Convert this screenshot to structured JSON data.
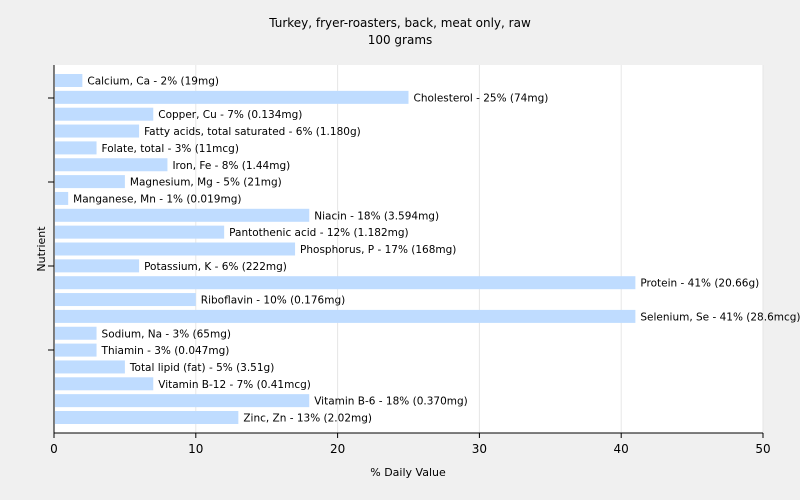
{
  "chart_data": {
    "type": "bar",
    "orientation": "horizontal",
    "title": "Turkey, fryer-roasters, back, meat only, raw",
    "subtitle": "100 grams",
    "xlabel": "% Daily Value",
    "ylabel": "Nutrient",
    "xlim": [
      0,
      50
    ],
    "xticks": [
      0,
      10,
      20,
      30,
      40,
      50
    ],
    "grid": true,
    "bar_color": "#bfdcff",
    "background": "#ffffff",
    "bars": [
      {
        "category": "Calcium, Ca",
        "value": 2,
        "label": "Calcium, Ca - 2% (19mg)"
      },
      {
        "category": "Cholesterol",
        "value": 25,
        "label": "Cholesterol - 25% (74mg)"
      },
      {
        "category": "Copper, Cu",
        "value": 7,
        "label": "Copper, Cu - 7% (0.134mg)"
      },
      {
        "category": "Fatty acids, total saturated",
        "value": 6,
        "label": "Fatty acids, total saturated - 6% (1.180g)"
      },
      {
        "category": "Folate, total",
        "value": 3,
        "label": "Folate, total - 3% (11mcg)"
      },
      {
        "category": "Iron, Fe",
        "value": 8,
        "label": "Iron, Fe - 8% (1.44mg)"
      },
      {
        "category": "Magnesium, Mg",
        "value": 5,
        "label": "Magnesium, Mg - 5% (21mg)"
      },
      {
        "category": "Manganese, Mn",
        "value": 1,
        "label": "Manganese, Mn - 1% (0.019mg)"
      },
      {
        "category": "Niacin",
        "value": 18,
        "label": "Niacin - 18% (3.594mg)"
      },
      {
        "category": "Pantothenic acid",
        "value": 12,
        "label": "Pantothenic acid - 12% (1.182mg)"
      },
      {
        "category": "Phosphorus, P",
        "value": 17,
        "label": "Phosphorus, P - 17% (168mg)"
      },
      {
        "category": "Potassium, K",
        "value": 6,
        "label": "Potassium, K - 6% (222mg)"
      },
      {
        "category": "Protein",
        "value": 41,
        "label": "Protein - 41% (20.66g)"
      },
      {
        "category": "Riboflavin",
        "value": 10,
        "label": "Riboflavin - 10% (0.176mg)"
      },
      {
        "category": "Selenium, Se",
        "value": 41,
        "label": "Selenium, Se - 41% (28.6mcg)"
      },
      {
        "category": "Sodium, Na",
        "value": 3,
        "label": "Sodium, Na - 3% (65mg)"
      },
      {
        "category": "Thiamin",
        "value": 3,
        "label": "Thiamin - 3% (0.047mg)"
      },
      {
        "category": "Total lipid (fat)",
        "value": 5,
        "label": "Total lipid (fat) - 5% (3.51g)"
      },
      {
        "category": "Vitamin B-12",
        "value": 7,
        "label": "Vitamin B-12 - 7% (0.41mcg)"
      },
      {
        "category": "Vitamin B-6",
        "value": 18,
        "label": "Vitamin B-6 - 18% (0.370mg)"
      },
      {
        "category": "Zinc, Zn",
        "value": 13,
        "label": "Zinc, Zn - 13% (2.02mg)"
      }
    ]
  }
}
